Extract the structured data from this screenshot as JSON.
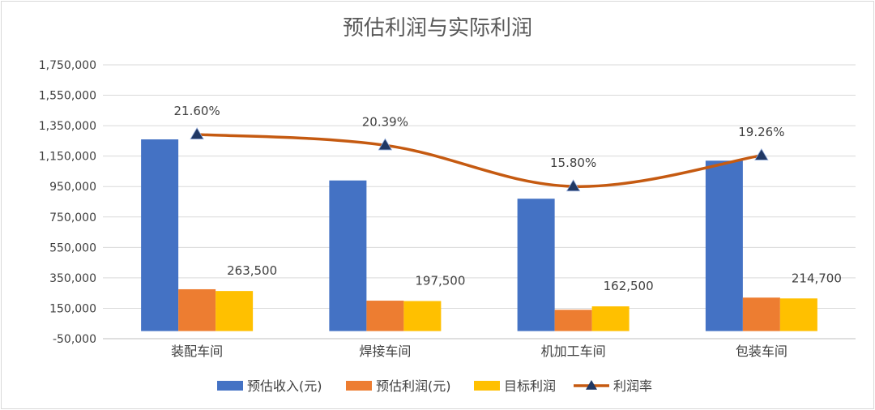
{
  "chart_data": {
    "type": "bar",
    "title": "预估利润与实际利润",
    "categories": [
      "装配车间",
      "焊接车间",
      "机加工车间",
      "包装车间"
    ],
    "ylim": [
      -50000,
      1750000
    ],
    "yticks": [
      -50000,
      150000,
      350000,
      550000,
      750000,
      950000,
      1150000,
      1350000,
      1550000,
      1750000
    ],
    "ytick_labels": [
      "-50,000",
      "150,000",
      "350,000",
      "550,000",
      "750,000",
      "950,000",
      "1,150,000",
      "1,350,000",
      "1,550,000",
      "1,750,000"
    ],
    "grid": true,
    "legend_position": "bottom",
    "series": [
      {
        "name": "预估收入(元)",
        "kind": "bar",
        "color": "#4472C4",
        "values": [
          1260000,
          990000,
          870000,
          1120000
        ]
      },
      {
        "name": "预估利润(元)",
        "kind": "bar",
        "color": "#ED7D31",
        "values": [
          275000,
          200000,
          140000,
          220000
        ]
      },
      {
        "name": "目标利润",
        "kind": "bar",
        "color": "#FFC000",
        "values": [
          263500,
          197500,
          162500,
          214700
        ],
        "data_labels": [
          "263,500",
          "197,500",
          "162,500",
          "214,700"
        ]
      },
      {
        "name": "利润率",
        "kind": "line",
        "color": "#C55A11",
        "marker": "triangle",
        "marker_color": "#203864",
        "values": [
          21.6,
          20.39,
          15.8,
          19.26
        ],
        "unit": "%",
        "data_labels": [
          "21.60%",
          "20.39%",
          "15.80%",
          "19.26%"
        ]
      }
    ],
    "secondary_axis_hidden": {
      "ylim": [
        -1.19,
        29.37
      ]
    }
  }
}
